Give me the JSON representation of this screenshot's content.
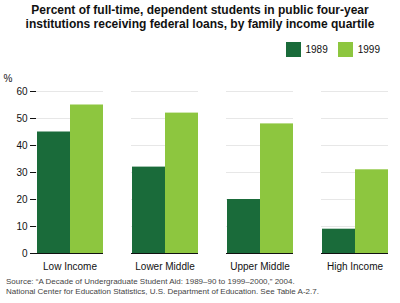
{
  "chart_data": {
    "type": "bar",
    "title": "Percent of full-time, dependent students in public four-year institutions receiving federal loans, by family income quartile",
    "source": "Source: “A Decade of Undergraduate Student Aid: 1989–90 to 1999–2000,” 2004.\nNational Center for Education Statistics, U.S. Department of Education. See Table A-2.7.",
    "y_label": "%",
    "categories": [
      "Low Income",
      "Lower Middle",
      "Upper Middle",
      "High Income"
    ],
    "series": [
      {
        "name": "1989",
        "color": "#1a6b3a",
        "values": [
          45,
          32,
          20,
          9
        ]
      },
      {
        "name": "1999",
        "color": "#8dc63f",
        "values": [
          55,
          52,
          48,
          31
        ]
      }
    ],
    "ylim": [
      0,
      60
    ],
    "yticks": [
      0,
      10,
      20,
      30,
      40,
      50,
      60
    ],
    "grid": true,
    "legend": "upper right"
  }
}
